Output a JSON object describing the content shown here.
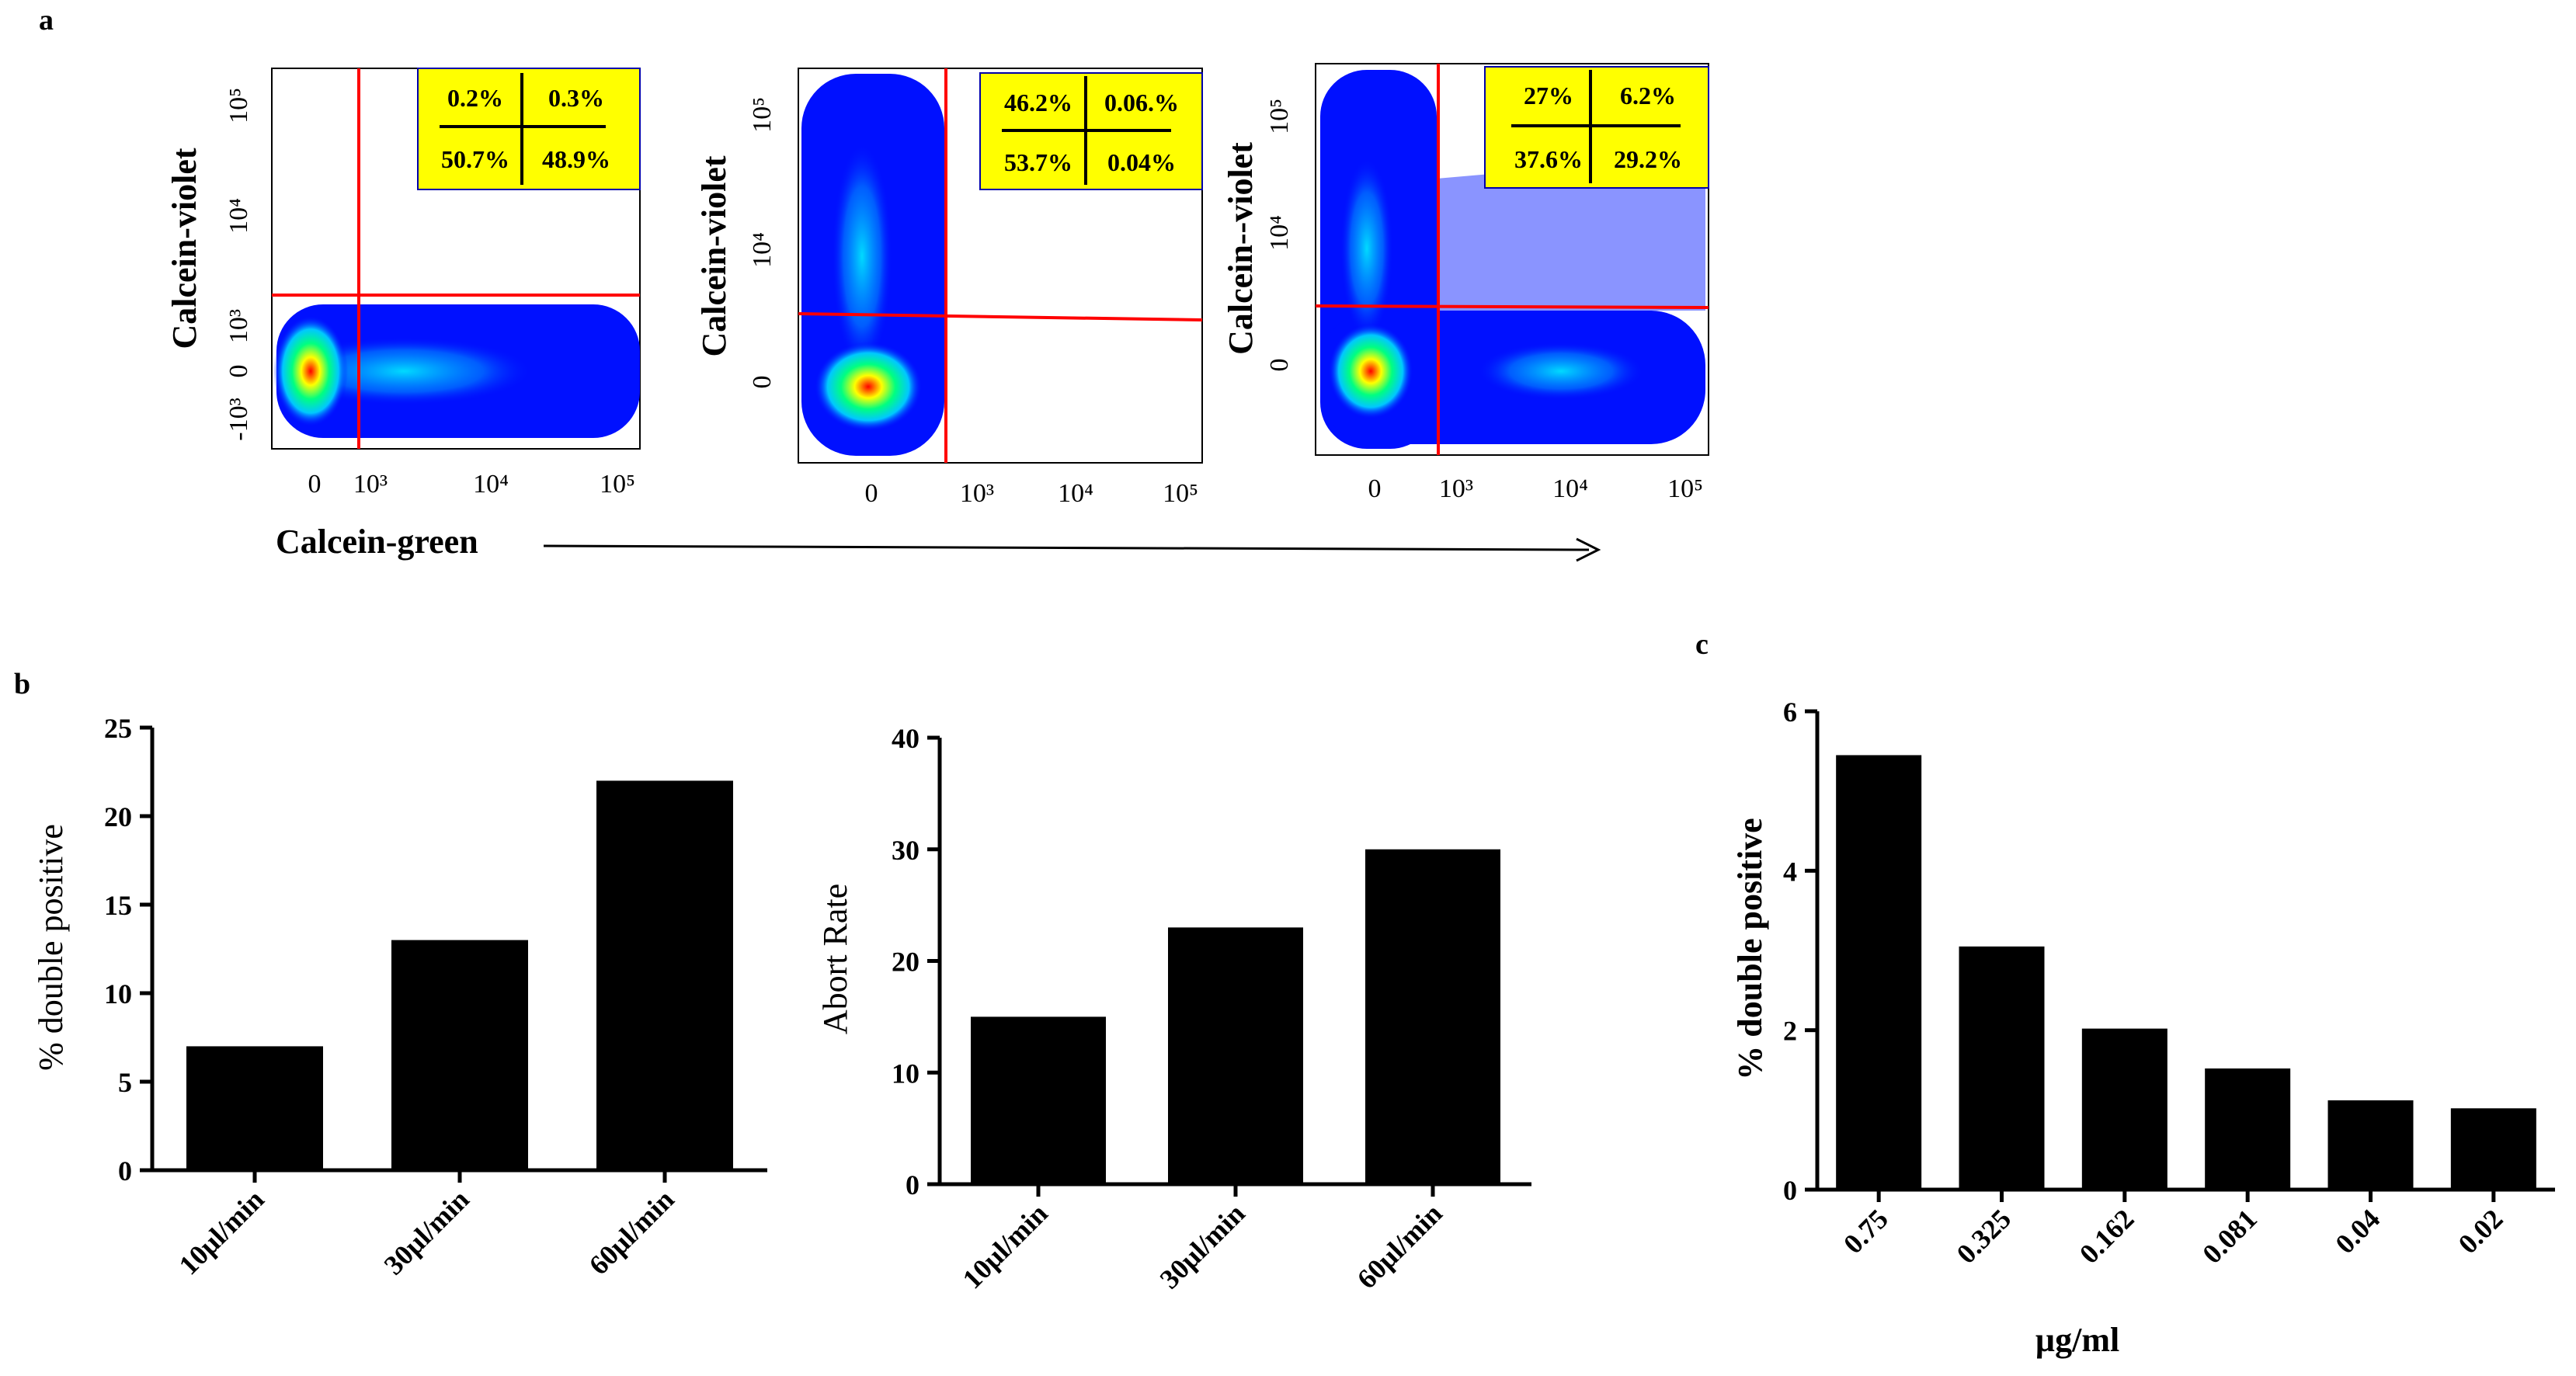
{
  "panel_labels": {
    "a": "a",
    "b": "b",
    "c": "c"
  },
  "flow": {
    "x_axis_label": "Calcein-green",
    "plots": [
      {
        "y_axis_label": "Calcein-violet",
        "x_ticks": [
          "0",
          "10³",
          "10⁴",
          "10⁵"
        ],
        "y_ticks": [
          "-10³",
          "0",
          "10³",
          "10⁴",
          "10⁵"
        ],
        "quadrants": {
          "ul": "0.2%",
          "ur": "0.3%",
          "ll": "50.7%",
          "lr": "48.9%"
        }
      },
      {
        "y_axis_label": "Calcein-violet",
        "x_ticks": [
          "0",
          "10³",
          "10⁴",
          "10⁵"
        ],
        "y_ticks": [
          "0",
          "10⁴",
          "10⁵"
        ],
        "quadrants": {
          "ul": "46.2%",
          "ur": "0.06.%",
          "ll": "53.7%",
          "lr": "0.04%"
        }
      },
      {
        "y_axis_label": "Calcein--violet",
        "x_ticks": [
          "0",
          "10³",
          "10⁴",
          "10⁵"
        ],
        "y_ticks": [
          "0",
          "10⁴",
          "10⁵"
        ],
        "quadrants": {
          "ul": "27%",
          "ur": "6.2%",
          "ll": "37.6%",
          "lr": "29.2%"
        }
      }
    ],
    "colors": {
      "gate": "#ff0000",
      "quad_box": "#ffff00",
      "density_low": "#0000ff",
      "density_high": "#ff0000"
    }
  },
  "chart_data": [
    {
      "type": "bar",
      "categories": [
        "10µl/min",
        "30µl/min",
        "60µl/min"
      ],
      "values": [
        7,
        13,
        22
      ],
      "ylabel": "% double positive",
      "xlabel": "",
      "ylim": [
        0,
        25
      ],
      "yticks": [
        0,
        5,
        10,
        15,
        20,
        25
      ]
    },
    {
      "type": "bar",
      "categories": [
        "10µl/min",
        "30µl/min",
        "60µl/min"
      ],
      "values": [
        15,
        23,
        30
      ],
      "ylabel": "Abort Rate",
      "xlabel": "",
      "ylim": [
        0,
        40
      ],
      "yticks": [
        0,
        10,
        20,
        30,
        40
      ]
    },
    {
      "type": "bar",
      "categories": [
        "0.75",
        "0.325",
        "0.162",
        "0.081",
        "0.04",
        "0.02"
      ],
      "values": [
        5.45,
        3.05,
        2.02,
        1.52,
        1.12,
        1.02
      ],
      "ylabel": "% double positive",
      "xlabel": "µg/ml",
      "ylim": [
        0,
        6
      ],
      "yticks": [
        0,
        2,
        4,
        6
      ]
    }
  ]
}
